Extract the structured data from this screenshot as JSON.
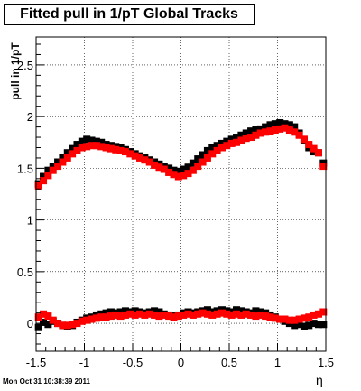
{
  "title": "Fitted pull in 1/pT  Global Tracks",
  "timestamp": "Mon Oct 31 10:38:39 2011",
  "chart_data": {
    "type": "scatter",
    "xlabel": "η",
    "ylabel": "pull in 1/pT",
    "xlim": [
      -1.5,
      1.5
    ],
    "ylim": [
      -0.27,
      2.77
    ],
    "x_ticks": [
      "-1.5",
      "-1",
      "-0.5",
      "0",
      "0.5",
      "1",
      "1.5"
    ],
    "x_tick_values": [
      -1.5,
      -1,
      -0.5,
      0,
      0.5,
      1,
      1.5
    ],
    "y_ticks": [
      "0",
      "0.5",
      "1",
      "1.5",
      "2",
      "2.5"
    ],
    "y_tick_values": [
      0,
      0.5,
      1,
      1.5,
      2,
      2.5
    ],
    "grid": true,
    "series": [
      {
        "color": "#000000",
        "x": [
          -1.475,
          -1.425,
          -1.375,
          -1.325,
          -1.275,
          -1.225,
          -1.175,
          -1.125,
          -1.075,
          -1.025,
          -0.975,
          -0.925,
          -0.875,
          -0.825,
          -0.775,
          -0.725,
          -0.675,
          -0.625,
          -0.575,
          -0.525,
          -0.475,
          -0.425,
          -0.375,
          -0.325,
          -0.275,
          -0.225,
          -0.175,
          -0.125,
          -0.075,
          -0.025,
          0.025,
          0.075,
          0.125,
          0.175,
          0.225,
          0.275,
          0.325,
          0.375,
          0.425,
          0.475,
          0.525,
          0.575,
          0.625,
          0.675,
          0.725,
          0.775,
          0.825,
          0.875,
          0.925,
          0.975,
          1.025,
          1.075,
          1.125,
          1.175,
          1.225,
          1.275,
          1.325,
          1.375,
          1.425,
          1.475
        ],
        "y": [
          1.35,
          1.42,
          1.48,
          1.52,
          1.56,
          1.6,
          1.65,
          1.69,
          1.73,
          1.76,
          1.78,
          1.77,
          1.76,
          1.75,
          1.73,
          1.72,
          1.71,
          1.7,
          1.68,
          1.66,
          1.64,
          1.62,
          1.6,
          1.58,
          1.56,
          1.54,
          1.52,
          1.5,
          1.48,
          1.47,
          1.49,
          1.51,
          1.55,
          1.59,
          1.63,
          1.67,
          1.7,
          1.72,
          1.74,
          1.76,
          1.78,
          1.8,
          1.82,
          1.84,
          1.86,
          1.87,
          1.88,
          1.9,
          1.92,
          1.93,
          1.94,
          1.93,
          1.92,
          1.9,
          1.84,
          1.77,
          1.7,
          1.66,
          1.65,
          1.55
        ]
      },
      {
        "color": "#ff0000",
        "x": [
          -1.475,
          -1.425,
          -1.375,
          -1.325,
          -1.275,
          -1.225,
          -1.175,
          -1.125,
          -1.075,
          -1.025,
          -0.975,
          -0.925,
          -0.875,
          -0.825,
          -0.775,
          -0.725,
          -0.675,
          -0.625,
          -0.575,
          -0.525,
          -0.475,
          -0.425,
          -0.375,
          -0.325,
          -0.275,
          -0.225,
          -0.175,
          -0.125,
          -0.075,
          -0.025,
          0.025,
          0.075,
          0.125,
          0.175,
          0.225,
          0.275,
          0.325,
          0.375,
          0.425,
          0.475,
          0.525,
          0.575,
          0.625,
          0.675,
          0.725,
          0.775,
          0.825,
          0.875,
          0.925,
          0.975,
          1.025,
          1.075,
          1.125,
          1.175,
          1.225,
          1.275,
          1.325,
          1.375,
          1.425,
          1.475
        ],
        "y": [
          1.33,
          1.38,
          1.43,
          1.48,
          1.52,
          1.56,
          1.6,
          1.64,
          1.67,
          1.7,
          1.71,
          1.72,
          1.72,
          1.71,
          1.7,
          1.69,
          1.68,
          1.67,
          1.66,
          1.64,
          1.62,
          1.6,
          1.58,
          1.56,
          1.53,
          1.51,
          1.49,
          1.46,
          1.44,
          1.42,
          1.43,
          1.45,
          1.48,
          1.52,
          1.56,
          1.6,
          1.64,
          1.67,
          1.7,
          1.72,
          1.74,
          1.75,
          1.77,
          1.79,
          1.8,
          1.82,
          1.84,
          1.85,
          1.86,
          1.87,
          1.88,
          1.89,
          1.87,
          1.85,
          1.82,
          1.78,
          1.73,
          1.69,
          1.65,
          1.52
        ]
      },
      {
        "color": "#000000",
        "x": [
          -1.475,
          -1.425,
          -1.375,
          -1.325,
          -1.275,
          -1.225,
          -1.175,
          -1.125,
          -1.075,
          -1.025,
          -0.975,
          -0.925,
          -0.875,
          -0.825,
          -0.775,
          -0.725,
          -0.675,
          -0.625,
          -0.575,
          -0.525,
          -0.475,
          -0.425,
          -0.375,
          -0.325,
          -0.275,
          -0.225,
          -0.175,
          -0.125,
          -0.075,
          -0.025,
          0.025,
          0.075,
          0.125,
          0.175,
          0.225,
          0.275,
          0.325,
          0.375,
          0.425,
          0.475,
          0.525,
          0.575,
          0.625,
          0.675,
          0.725,
          0.775,
          0.825,
          0.875,
          0.925,
          0.975,
          1.025,
          1.075,
          1.125,
          1.175,
          1.225,
          1.275,
          1.325,
          1.375,
          1.425,
          1.475
        ],
        "y": [
          -0.04,
          0.01,
          -0.01,
          0.02,
          0.0,
          -0.02,
          -0.03,
          -0.02,
          0.01,
          0.03,
          0.05,
          0.06,
          0.08,
          0.09,
          0.1,
          0.11,
          0.1,
          0.11,
          0.12,
          0.11,
          0.12,
          0.11,
          0.1,
          0.11,
          0.12,
          0.11,
          0.09,
          0.08,
          0.07,
          0.08,
          0.1,
          0.11,
          0.1,
          0.11,
          0.12,
          0.13,
          0.11,
          0.12,
          0.13,
          0.12,
          0.11,
          0.13,
          0.12,
          0.11,
          0.1,
          0.12,
          0.11,
          0.1,
          0.08,
          0.06,
          0.04,
          0.02,
          0.0,
          -0.02,
          -0.01,
          -0.03,
          -0.02,
          0.0,
          -0.01,
          -0.01
        ]
      },
      {
        "color": "#ff0000",
        "x": [
          -1.475,
          -1.425,
          -1.375,
          -1.325,
          -1.275,
          -1.225,
          -1.175,
          -1.125,
          -1.075,
          -1.025,
          -0.975,
          -0.925,
          -0.875,
          -0.825,
          -0.775,
          -0.725,
          -0.675,
          -0.625,
          -0.575,
          -0.525,
          -0.475,
          -0.425,
          -0.375,
          -0.325,
          -0.275,
          -0.225,
          -0.175,
          -0.125,
          -0.075,
          -0.025,
          0.025,
          0.075,
          0.125,
          0.175,
          0.225,
          0.275,
          0.325,
          0.375,
          0.425,
          0.475,
          0.525,
          0.575,
          0.625,
          0.675,
          0.725,
          0.775,
          0.825,
          0.875,
          0.925,
          0.975,
          1.025,
          1.075,
          1.125,
          1.175,
          1.225,
          1.275,
          1.325,
          1.375,
          1.425,
          1.475
        ],
        "y": [
          0.06,
          0.09,
          0.07,
          0.03,
          0.0,
          -0.02,
          -0.02,
          -0.01,
          0.0,
          0.02,
          0.03,
          0.04,
          0.05,
          0.06,
          0.06,
          0.07,
          0.08,
          0.07,
          0.08,
          0.09,
          0.08,
          0.09,
          0.08,
          0.09,
          0.08,
          0.07,
          0.08,
          0.07,
          0.06,
          0.07,
          0.08,
          0.09,
          0.08,
          0.09,
          0.1,
          0.09,
          0.08,
          0.09,
          0.1,
          0.09,
          0.08,
          0.09,
          0.08,
          0.09,
          0.08,
          0.07,
          0.08,
          0.07,
          0.06,
          0.05,
          0.04,
          0.04,
          0.03,
          0.03,
          0.04,
          0.05,
          0.06,
          0.08,
          0.09,
          0.11
        ]
      }
    ]
  }
}
